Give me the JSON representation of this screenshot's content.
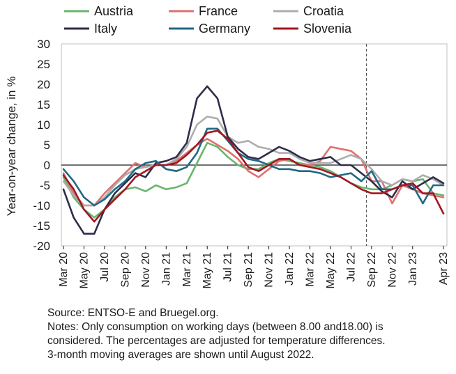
{
  "chart_data": {
    "type": "line",
    "title": "",
    "xlabel": "",
    "ylabel": "Year-on-year change, in %",
    "ylim": [
      -20,
      30
    ],
    "yticks": [
      30,
      25,
      20,
      15,
      10,
      5,
      0,
      -5,
      -10,
      -15,
      -20
    ],
    "x": [
      "Mar 20",
      "Apr 20",
      "May 20",
      "Jun 20",
      "Jul 20",
      "Aug 20",
      "Sep 20",
      "Oct 20",
      "Nov 20",
      "Dec 20",
      "Jan 21",
      "Feb 21",
      "Mar 21",
      "Apr 21",
      "May 21",
      "Jun 21",
      "Jul 21",
      "Aug 21",
      "Sep 21",
      "Oct 21",
      "Nov 21",
      "Dec 21",
      "Jan 22",
      "Feb 22",
      "Mar 22",
      "Apr 22",
      "May 22",
      "Jun 22",
      "Jul 22",
      "Aug 22",
      "Sep 22",
      "Oct 22",
      "Nov 22",
      "Dec 22",
      "Jan 23",
      "Feb 23",
      "Mar 23",
      "Apr 23"
    ],
    "xtick_labels": [
      "Mar 20",
      "May 20",
      "Jul 20",
      "Sep 20",
      "Nov 20",
      "Jan 21",
      "Mar 21",
      "May 21",
      "Jul 21",
      "Sep 21",
      "Nov 21",
      "Jan 22",
      "Mar 22",
      "May 22",
      "Jul 22",
      "Sep 22",
      "Nov 22",
      "Jan 23",
      "Apr 23"
    ],
    "zero_line": true,
    "grid": false,
    "legend_position": "top",
    "annotations": [
      "dashed vertical line between Aug 22 and Sep 22"
    ],
    "series": [
      {
        "name": "Austria",
        "color": "#6ab56d",
        "values": [
          -3,
          -8,
          -11,
          -13,
          -11,
          -8,
          -6,
          -5.5,
          -6.5,
          -5,
          -6,
          -5.5,
          -4.5,
          0.5,
          5.5,
          4.5,
          2,
          0,
          -1,
          -1,
          0.5,
          1.5,
          1,
          0.5,
          0,
          -0.5,
          -1.5,
          -3,
          -4.5,
          -5.5,
          -6,
          -6,
          -5,
          -3.5,
          -4,
          -3.5,
          -7,
          -7.5
        ]
      },
      {
        "name": "France",
        "color": "#e07070",
        "values": [
          -2,
          -7,
          -10,
          -10,
          -7,
          -4.5,
          -2,
          0.5,
          -0.5,
          0,
          0,
          1,
          3,
          5,
          6.5,
          5,
          3.5,
          1.5,
          -1.5,
          -3,
          -1,
          1,
          1.5,
          0,
          0,
          1,
          4.5,
          4,
          3.5,
          1.5,
          -4,
          -4,
          -9.5,
          -5,
          -6,
          -7,
          -7.5,
          -8
        ]
      },
      {
        "name": "Croatia",
        "color": "#adadad",
        "values": [
          -4,
          -7.5,
          -10,
          -10,
          -8,
          -5,
          -2.5,
          -1,
          -0.5,
          0,
          0,
          1.5,
          4.5,
          10,
          12,
          11.5,
          7,
          5.5,
          6,
          4.5,
          4,
          3,
          3,
          1.5,
          0.5,
          0.5,
          0.5,
          1.5,
          2.5,
          1.5,
          -1,
          -4,
          -5,
          -3.5,
          -4,
          -2.5,
          -3.5,
          -5
        ]
      },
      {
        "name": "Italy",
        "color": "#2d2d4a",
        "values": [
          -6,
          -13,
          -17,
          -17,
          -11,
          -7,
          -4.5,
          -2,
          -3,
          0.5,
          1,
          2,
          5.5,
          16.5,
          19.5,
          16.5,
          7,
          4,
          2,
          1.5,
          3,
          4.5,
          3.5,
          2,
          1,
          1.5,
          2,
          0,
          0,
          -2,
          -4,
          -6.5,
          -8,
          -4,
          -6,
          -4.5,
          -3,
          -4.5
        ]
      },
      {
        "name": "Germany",
        "color": "#1d6a84",
        "values": [
          -1,
          -4,
          -8,
          -10,
          -8.5,
          -6,
          -4,
          -1,
          0.5,
          1,
          -1,
          -1.5,
          -0.5,
          3,
          9,
          9,
          6,
          3,
          1.5,
          1,
          0,
          -1,
          -1,
          -1.5,
          -1.5,
          -2,
          -3,
          -2.5,
          -2,
          -4,
          -1.5,
          -6,
          -6,
          -5,
          -5,
          -9.5,
          -5,
          -5
        ]
      },
      {
        "name": "Slovenia",
        "color": "#a31621",
        "values": [
          -2.5,
          -6,
          -11,
          -14,
          -11,
          -8.5,
          -6,
          -3,
          -1.5,
          0,
          0,
          0.5,
          2.5,
          5,
          8,
          8.5,
          6.5,
          3,
          -0.5,
          -1.5,
          0,
          1.5,
          1.5,
          0,
          -0.5,
          -1,
          -2,
          -3,
          -4.5,
          -6,
          -7,
          -7,
          -6,
          -5,
          -4.5,
          -7,
          -7,
          -12
        ]
      }
    ]
  },
  "notes": {
    "source": "Source: ENTSO-E and Bruegel.org.",
    "line1": "Notes: Only consumption on working days (between 8.00 and18.00) is",
    "line2": "considered. The percentages are adjusted for temperature differences.",
    "line3": "3-month moving averages are shown until August 2022."
  }
}
